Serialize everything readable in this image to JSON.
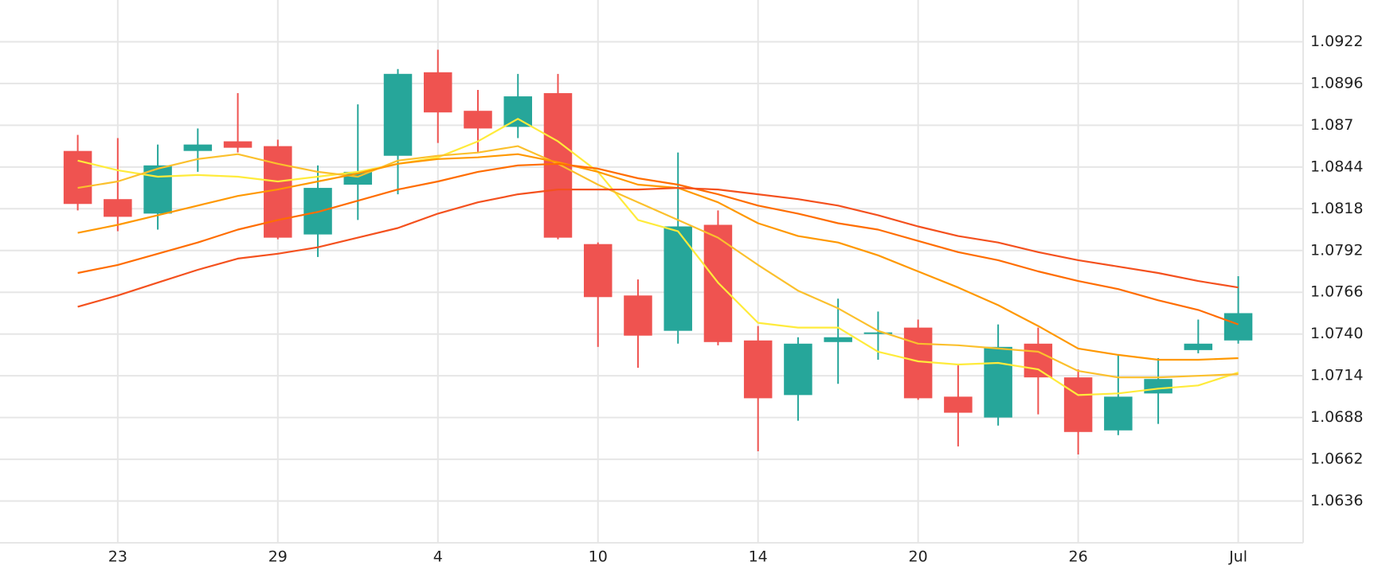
{
  "chart_data": {
    "type": "candlestick",
    "categories": [
      null,
      "23",
      null,
      null,
      null,
      "29",
      null,
      null,
      null,
      "4",
      null,
      null,
      null,
      "10",
      null,
      null,
      null,
      "14",
      null,
      null,
      null,
      "20",
      null,
      null,
      null,
      "26",
      null,
      null,
      null,
      "Jul"
    ],
    "open": [
      1.0854,
      1.0824,
      1.0815,
      1.0854,
      1.086,
      1.0857,
      1.0802,
      1.0833,
      1.0851,
      1.0903,
      1.0879,
      1.0869,
      1.089,
      1.0796,
      1.0764,
      1.0742,
      1.0808,
      1.0736,
      1.0702,
      1.0735,
      1.074,
      1.0744,
      1.0701,
      1.0688,
      1.0734,
      1.0713,
      1.068,
      1.0703,
      1.073,
      1.0736
    ],
    "high": [
      1.0864,
      1.0862,
      1.0858,
      1.0868,
      1.089,
      1.0861,
      1.0845,
      1.0883,
      1.0905,
      1.0917,
      1.0892,
      1.0902,
      1.0902,
      1.0797,
      1.0774,
      1.0853,
      1.0817,
      1.0745,
      1.0738,
      1.0762,
      1.0754,
      1.0749,
      1.0721,
      1.0746,
      1.0744,
      1.0718,
      1.0727,
      1.0725,
      1.0749,
      1.0776
    ],
    "low": [
      1.0817,
      1.0804,
      1.0805,
      1.0841,
      1.0853,
      1.0799,
      1.0788,
      1.0811,
      1.0827,
      1.0859,
      1.0853,
      1.0862,
      1.0799,
      1.0732,
      1.0719,
      1.0734,
      1.0733,
      1.0667,
      1.0686,
      1.0709,
      1.0724,
      1.0699,
      1.067,
      1.0683,
      1.069,
      1.0665,
      1.0677,
      1.0684,
      1.0728,
      1.0734
    ],
    "close": [
      1.0821,
      1.0813,
      1.0845,
      1.0858,
      1.0856,
      1.08,
      1.0831,
      1.0841,
      1.0902,
      1.0878,
      1.0868,
      1.0888,
      1.08,
      1.0763,
      1.0739,
      1.0807,
      1.0735,
      1.07,
      1.0734,
      1.0738,
      1.0741,
      1.07,
      1.0691,
      1.0732,
      1.0713,
      1.0679,
      1.0701,
      1.0712,
      1.0734,
      1.0753
    ],
    "up_color": "#26a69a",
    "down_color": "#ef5350",
    "series": [
      {
        "color": "#ffeb3b",
        "values": [
          1.0848,
          1.0842,
          1.0838,
          1.0839,
          1.0838,
          1.0835,
          1.0838,
          1.0841,
          1.0846,
          1.085,
          1.086,
          1.0874,
          1.086,
          1.0841,
          1.0811,
          1.0804,
          1.0772,
          1.0747,
          1.0744,
          1.0744,
          1.0729,
          1.0723,
          1.0721,
          1.0722,
          1.0718,
          1.0702,
          1.0703,
          1.0706,
          1.0708,
          1.0716
        ]
      },
      {
        "color": "#fbc02d",
        "values": [
          1.0831,
          1.0835,
          1.0843,
          1.0849,
          1.0852,
          1.0846,
          1.0841,
          1.0838,
          1.0848,
          1.0851,
          1.0853,
          1.0857,
          1.0846,
          1.0833,
          1.0822,
          1.0811,
          1.08,
          1.0783,
          1.0767,
          1.0756,
          1.0742,
          1.0734,
          1.0733,
          1.0731,
          1.0729,
          1.0717,
          1.0713,
          1.0713,
          1.0714,
          1.0715
        ]
      },
      {
        "color": "#ff9800",
        "values": [
          1.0803,
          1.0808,
          1.0814,
          1.082,
          1.0826,
          1.083,
          1.0835,
          1.084,
          1.0846,
          1.0849,
          1.085,
          1.0852,
          1.0847,
          1.0841,
          1.0833,
          1.0831,
          1.0822,
          1.0809,
          1.0801,
          1.0797,
          1.0789,
          1.0779,
          1.0769,
          1.0758,
          1.0745,
          1.0731,
          1.0727,
          1.0724,
          1.0724,
          1.0725
        ]
      },
      {
        "color": "#ff6d00",
        "values": [
          1.0778,
          1.0783,
          1.079,
          1.0797,
          1.0805,
          1.0811,
          1.0816,
          1.0823,
          1.083,
          1.0835,
          1.0841,
          1.0845,
          1.0846,
          1.0843,
          1.0837,
          1.0833,
          1.0827,
          1.082,
          1.0815,
          1.0809,
          1.0805,
          1.0798,
          1.0791,
          1.0786,
          1.0779,
          1.0773,
          1.0768,
          1.0761,
          1.0755,
          1.0746
        ]
      },
      {
        "color": "#f4511e",
        "values": [
          1.0757,
          1.0764,
          1.0772,
          1.078,
          1.0787,
          1.079,
          1.0794,
          1.08,
          1.0806,
          1.0815,
          1.0822,
          1.0827,
          1.083,
          1.083,
          1.083,
          1.0831,
          1.083,
          1.0827,
          1.0824,
          1.082,
          1.0814,
          1.0807,
          1.0801,
          1.0797,
          1.0791,
          1.0786,
          1.0782,
          1.0778,
          1.0773,
          1.0769
        ]
      }
    ],
    "ylim": [
      1.061,
      1.0948
    ],
    "yticks": [
      1.0636,
      1.0662,
      1.0688,
      1.0714,
      {
        "value": 1.074,
        "label": "1.0740"
      },
      1.0766,
      1.0792,
      1.0818,
      1.0844,
      1.087,
      1.0896,
      1.0922
    ],
    "grid": true
  }
}
